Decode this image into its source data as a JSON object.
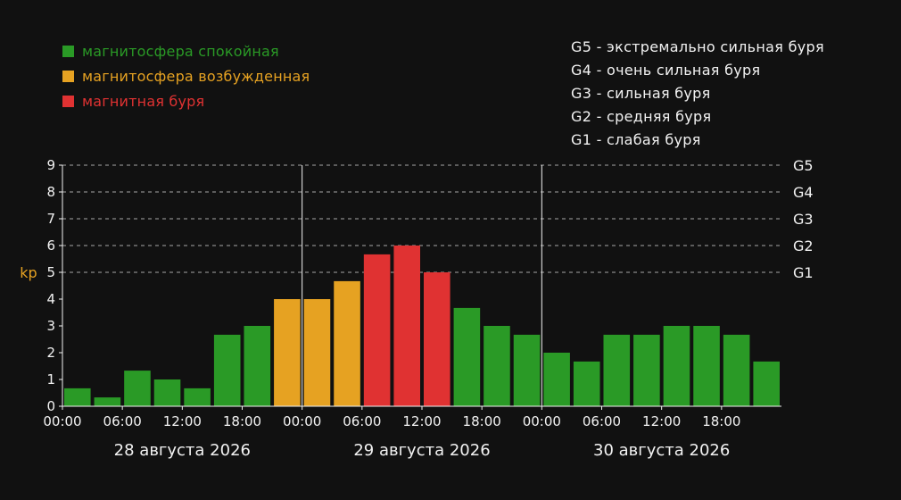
{
  "colors": {
    "background": "#111111",
    "quiet": "#2a9a26",
    "active": "#e6a222",
    "storm": "#e03232",
    "text": "#f2f2f2",
    "grid": "#cccccc",
    "ylabel": "#e6a222"
  },
  "legend": [
    {
      "label": "магнитосфера спокойная",
      "level": "quiet"
    },
    {
      "label": "магнитосфера возбужденная",
      "level": "active"
    },
    {
      "label": "магнитная буря",
      "level": "storm"
    }
  ],
  "storm_scale": [
    {
      "label": "G5 - экстремально сильная буря"
    },
    {
      "label": "G4 - очень сильная буря"
    },
    {
      "label": "G3 - сильная буря"
    },
    {
      "label": "G2 - средняя буря"
    },
    {
      "label": "G1 - слабая буря"
    }
  ],
  "chart_data": {
    "type": "bar",
    "ylabel": "kp",
    "ylim": [
      0,
      9
    ],
    "yticks": [
      0,
      1,
      2,
      3,
      4,
      5,
      6,
      7,
      8,
      9
    ],
    "grid": true,
    "g_levels": [
      {
        "label": "G1",
        "value": 5
      },
      {
        "label": "G2",
        "value": 6
      },
      {
        "label": "G3",
        "value": 7
      },
      {
        "label": "G4",
        "value": 8
      },
      {
        "label": "G5",
        "value": 9
      }
    ],
    "x_tick_labels": [
      "00:00",
      "06:00",
      "12:00",
      "18:00",
      "00:00",
      "06:00",
      "12:00",
      "18:00",
      "00:00",
      "06:00",
      "12:00",
      "18:00"
    ],
    "days": [
      {
        "label": "28 августа 2026",
        "values": [
          0.67,
          0.33,
          1.33,
          1.0,
          0.67,
          2.67,
          3.0,
          4.0
        ]
      },
      {
        "label": "29 августа 2026",
        "values": [
          4.0,
          4.67,
          5.67,
          6.0,
          5.0,
          3.67,
          3.0,
          2.67
        ]
      },
      {
        "label": "30 августа 2026",
        "values": [
          2.0,
          1.67,
          2.67,
          2.67,
          3.0,
          3.0,
          2.67,
          1.67
        ]
      }
    ],
    "thresholds": {
      "active_from": 4,
      "storm_from": 5
    }
  }
}
